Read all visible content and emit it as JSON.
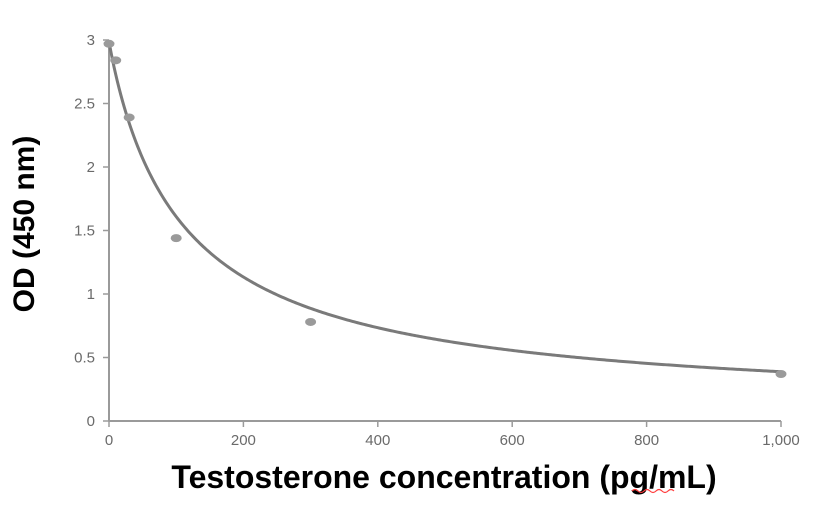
{
  "chart_data": {
    "type": "scatter",
    "xlabel": "Testosterone concentration (pg/mL)",
    "ylabel": "OD (450 nm)",
    "xlim": [
      0,
      1000
    ],
    "ylim": [
      0,
      3
    ],
    "x_ticks": [
      "0",
      "200",
      "400",
      "600",
      "800",
      "1,000"
    ],
    "y_ticks": [
      "0",
      "0.5",
      "1",
      "1.5",
      "2",
      "2.5",
      "3"
    ],
    "x_tick_values": [
      0,
      200,
      400,
      600,
      800,
      1000
    ],
    "y_tick_values": [
      0,
      0.5,
      1,
      1.5,
      2,
      2.5,
      3
    ],
    "grid": false,
    "series": [
      {
        "x": [
          0,
          10,
          30,
          100,
          300,
          1000
        ],
        "y": [
          2.97,
          2.84,
          2.39,
          1.44,
          0.78,
          0.37
        ]
      }
    ],
    "fit_curve": {
      "type": "4PL",
      "top": 2.99,
      "bottom": 0.07,
      "ec50": 112,
      "hill": 0.96
    },
    "colors": {
      "points": "#9a9a9a",
      "curve": "#7a7a7a",
      "axis": "#9a9a9a",
      "tick_text": "#6a6a6a",
      "title_text": "#000000"
    }
  }
}
